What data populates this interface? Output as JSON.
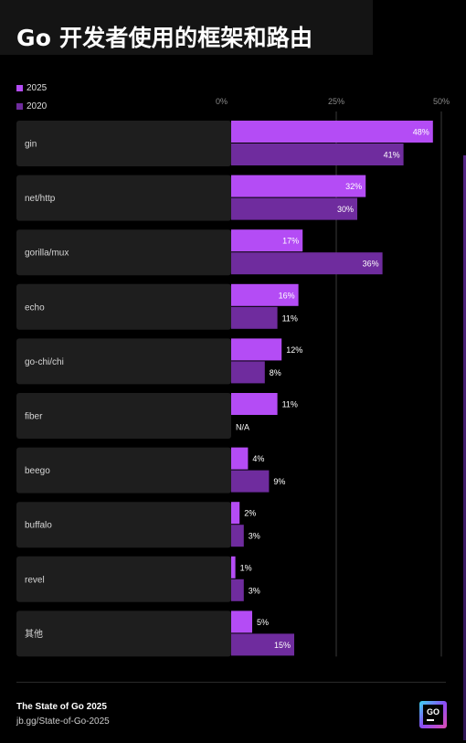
{
  "title": "Go 开发者使用的框架和路由",
  "legend": [
    {
      "label": "2025",
      "color": "#b44cf5"
    },
    {
      "label": "2020",
      "color": "#6f2c9e"
    }
  ],
  "chart_data": {
    "type": "bar",
    "orientation": "horizontal",
    "title": "Go 开发者使用的框架和路由",
    "categories": [
      "gin",
      "net/http",
      "gorilla/mux",
      "echo",
      "go-chi/chi",
      "fiber",
      "beego",
      "buffalo",
      "revel",
      "其他"
    ],
    "series": [
      {
        "name": "2025",
        "color": "#b44cf5",
        "values": [
          48,
          32,
          17,
          16,
          12,
          11,
          4,
          2,
          1,
          5
        ]
      },
      {
        "name": "2020",
        "color": "#6f2c9e",
        "values": [
          41,
          30,
          36,
          11,
          8,
          null,
          9,
          3,
          3,
          15
        ]
      }
    ],
    "value_suffix": "%",
    "na_label": "N/A",
    "xlim": [
      0,
      50
    ],
    "ticks": [
      0,
      25,
      50
    ],
    "tick_labels": [
      "0%",
      "25%",
      "50%"
    ],
    "grid": true,
    "legend_position": "top-left"
  },
  "footer": {
    "title": "The State of Go 2025",
    "link": "jb.gg/State-of-Go-2025"
  },
  "logo": {
    "text": "GO",
    "icon": "go-logo-icon"
  }
}
